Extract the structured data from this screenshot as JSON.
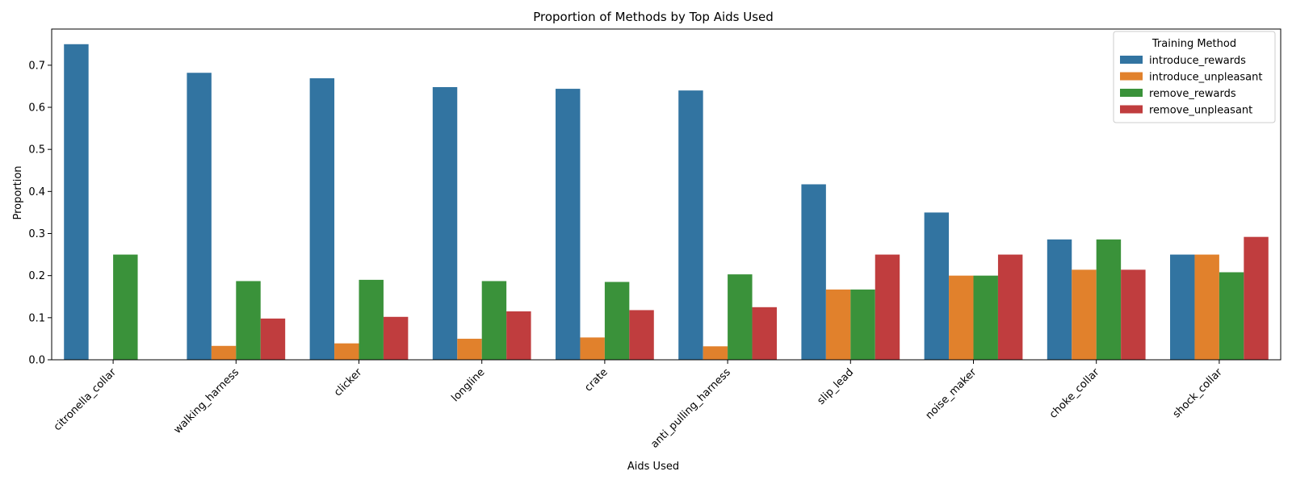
{
  "chart_data": {
    "type": "bar",
    "title": "Proportion of Methods by Top Aids Used",
    "xlabel": "Aids Used",
    "ylabel": "Proportion",
    "ylim": [
      0,
      0.786
    ],
    "yticks": [
      "0.0",
      "0.1",
      "0.2",
      "0.3",
      "0.4",
      "0.5",
      "0.6",
      "0.7"
    ],
    "grid": false,
    "legend": {
      "title": "Training Method",
      "placement": "top-right"
    },
    "categories": [
      "citronella_collar",
      "walking_harness",
      "clicker",
      "longline",
      "crate",
      "anti_pulling_harness",
      "slip_lead",
      "noise_maker",
      "choke_collar",
      "shock_collar"
    ],
    "series": [
      {
        "name": "introduce_rewards",
        "color": "#3274a1",
        "values": [
          0.75,
          0.682,
          0.669,
          0.648,
          0.644,
          0.64,
          0.417,
          0.35,
          0.286,
          0.25
        ]
      },
      {
        "name": "introduce_unpleasant",
        "color": "#e1812c",
        "values": [
          0,
          0.033,
          0.039,
          0.05,
          0.053,
          0.032,
          0.167,
          0.2,
          0.214,
          0.25
        ]
      },
      {
        "name": "remove_rewards",
        "color": "#3a923a",
        "values": [
          0.25,
          0.187,
          0.19,
          0.187,
          0.185,
          0.203,
          0.167,
          0.2,
          0.286,
          0.208
        ]
      },
      {
        "name": "remove_unpleasant",
        "color": "#c03d3e",
        "values": [
          0,
          0.098,
          0.102,
          0.115,
          0.118,
          0.125,
          0.25,
          0.25,
          0.214,
          0.292
        ]
      }
    ]
  }
}
